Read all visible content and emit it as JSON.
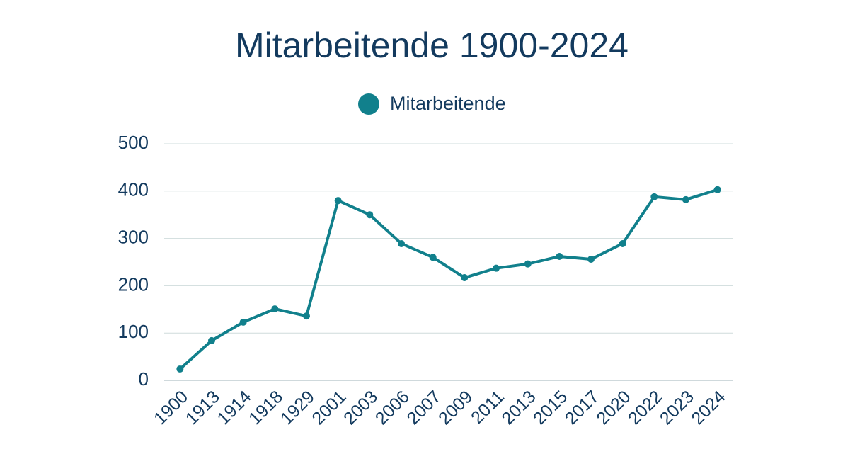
{
  "chart_data": {
    "type": "line",
    "title": "Mitarbeitende 1900-2024",
    "categories": [
      "1900",
      "1913",
      "1914",
      "1918",
      "1929",
      "2001",
      "2003",
      "2006",
      "2007",
      "2009",
      "2011",
      "2013",
      "2015",
      "2017",
      "2020",
      "2022",
      "2023",
      "2024"
    ],
    "series": [
      {
        "name": "Mitarbeitende",
        "color": "#11808c",
        "values": [
          24,
          84,
          123,
          151,
          136,
          380,
          350,
          289,
          260,
          217,
          237,
          246,
          262,
          256,
          289,
          388,
          382,
          403
        ]
      }
    ],
    "ylim": [
      0,
      500
    ],
    "yticks": [
      0,
      100,
      200,
      300,
      400,
      500
    ],
    "grid": true,
    "legend": "top"
  }
}
